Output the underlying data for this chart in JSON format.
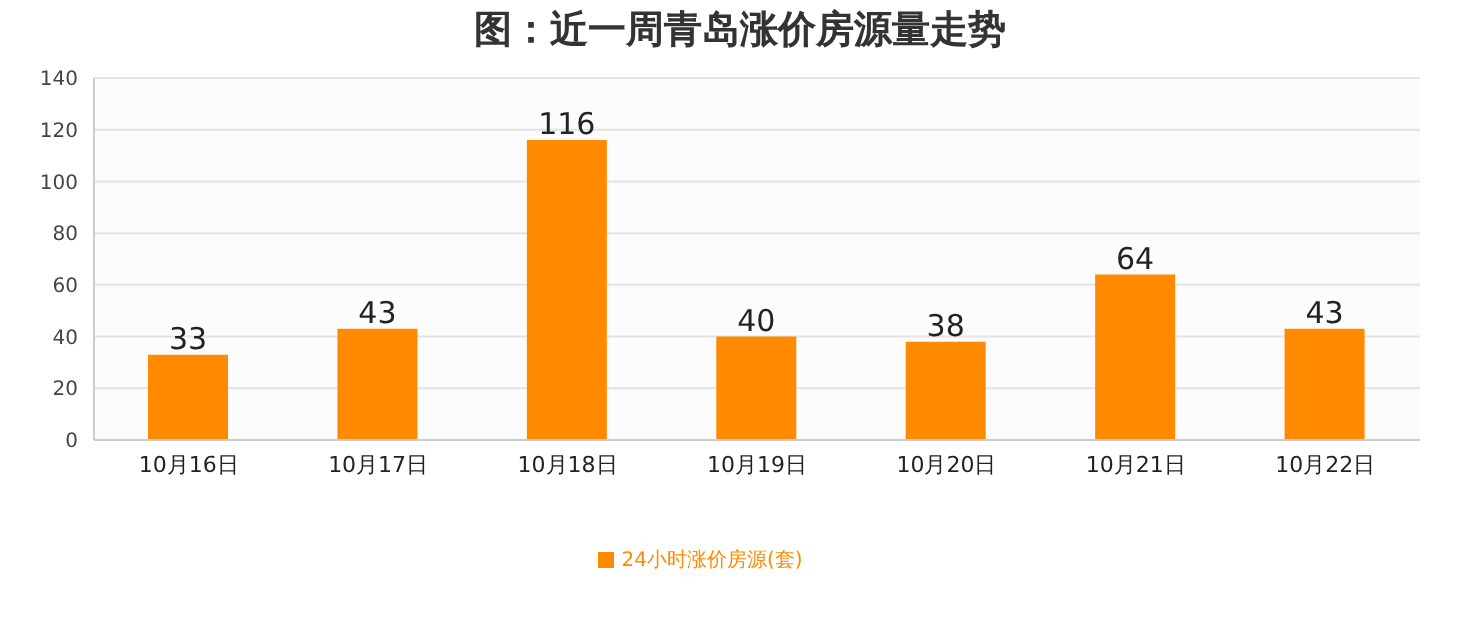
{
  "chart_data": {
    "type": "bar",
    "title": "图：近一周青岛涨价房源量走势",
    "categories": [
      "10月16日",
      "10月17日",
      "10月18日",
      "10月19日",
      "10月20日",
      "10月21日",
      "10月22日"
    ],
    "series": [
      {
        "name": "24小时涨价房源(套)",
        "color": "#ff8a00",
        "values": [
          33,
          43,
          116,
          40,
          38,
          64,
          43
        ]
      }
    ],
    "ylim": [
      0,
      140
    ],
    "yticks": [
      0,
      20,
      40,
      60,
      80,
      100,
      120,
      140
    ],
    "grid": "y",
    "legend": "bottom",
    "data_labels": true
  }
}
